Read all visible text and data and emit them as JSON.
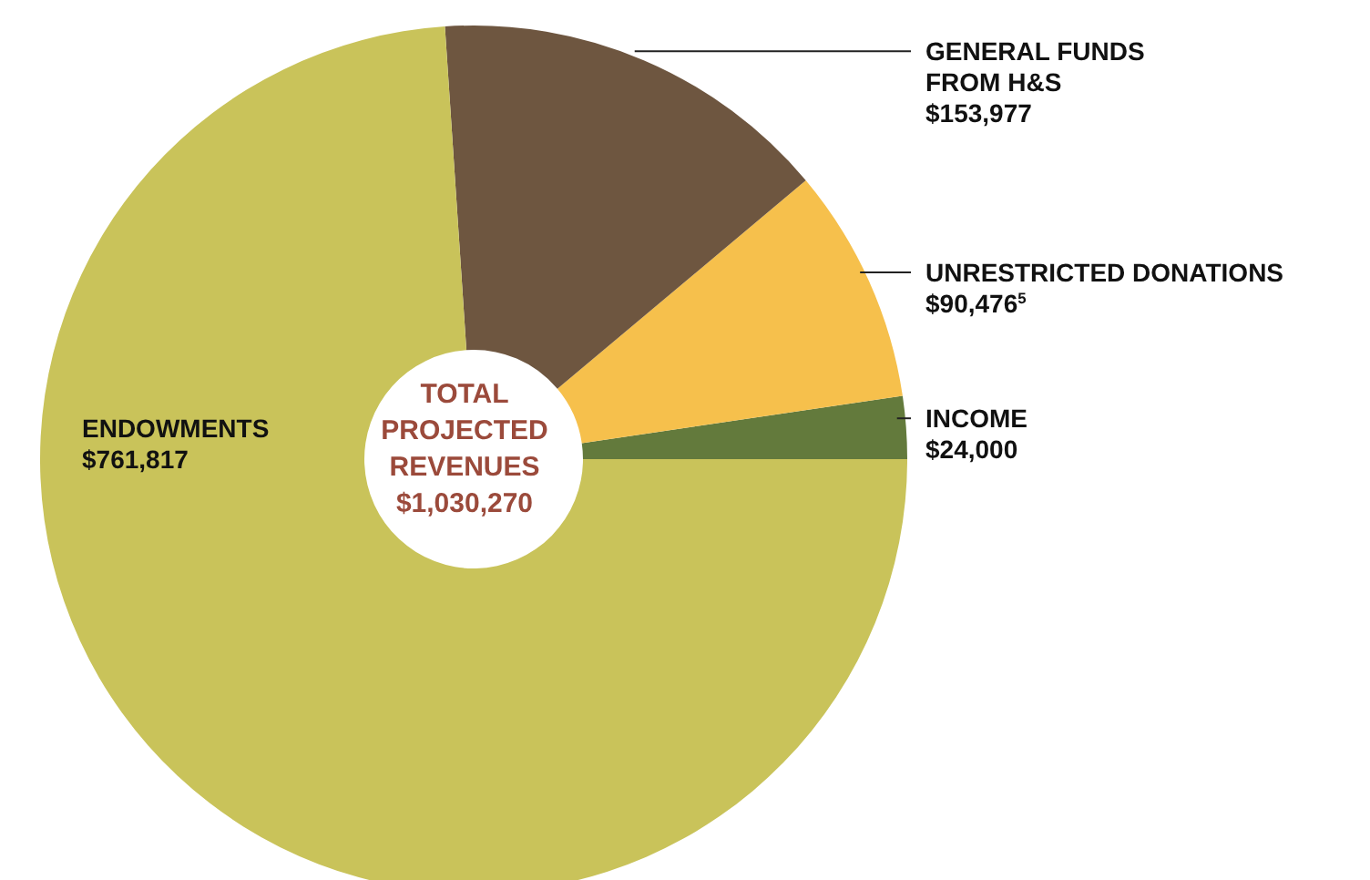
{
  "chart_data": {
    "type": "donut",
    "title": "TOTAL PROJECTED REVENUES",
    "subtitle": "$1,030,270",
    "categories": [
      "INCOME",
      "UNRESTRICTED DONATIONS",
      "GENERAL FUNDS\nFROM H&S",
      "ENDOWMENTS"
    ],
    "values": [
      24000,
      90476,
      153977,
      761817
    ],
    "value_labels": [
      "$24,000",
      "$90,476$^{5}$",
      "$153,977",
      "$761,817"
    ],
    "colors": [
      "#637a3c",
      "#f6c04c",
      "#6e5640",
      "#c9c35a"
    ],
    "legend": false
  }
}
